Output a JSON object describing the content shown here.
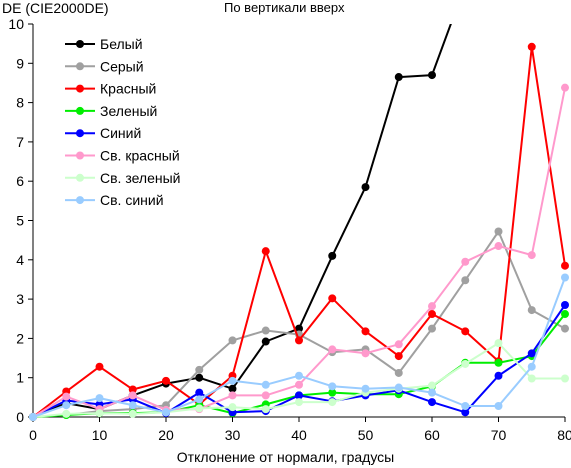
{
  "chart_data": {
    "type": "line",
    "title": "По вертикали вверх",
    "ylabel": "DE (CIE2000DE)",
    "xlabel": "Отклонение от нормали, градусы",
    "xlim": [
      0,
      80
    ],
    "ylim": [
      0,
      10
    ],
    "x_ticks": [
      "0",
      "10",
      "20",
      "30",
      "40",
      "50",
      "60",
      "70",
      "80"
    ],
    "y_ticks": [
      "0",
      "1",
      "2",
      "3",
      "4",
      "5",
      "6",
      "7",
      "8",
      "9",
      "10"
    ],
    "grid": false,
    "legend_position": "top-left",
    "x": [
      0,
      5,
      10,
      15,
      20,
      25,
      30,
      35,
      40,
      45,
      50,
      55,
      60,
      65,
      70,
      75,
      80
    ],
    "series": [
      {
        "name": "Белый",
        "color": "#000000",
        "values": [
          0.0,
          0.35,
          0.2,
          0.55,
          0.85,
          1.0,
          0.72,
          1.92,
          2.25,
          4.1,
          5.85,
          8.65,
          8.7,
          11.0,
          null,
          null,
          null
        ]
      },
      {
        "name": "Серый",
        "color": "#a0a0a0",
        "values": [
          0.0,
          0.05,
          0.15,
          0.2,
          0.3,
          1.2,
          1.95,
          2.2,
          2.1,
          1.65,
          1.72,
          1.12,
          2.25,
          3.48,
          4.72,
          2.72,
          2.25
        ]
      },
      {
        "name": "Красный",
        "color": "#ff0000",
        "values": [
          0.0,
          0.65,
          1.28,
          0.7,
          0.92,
          0.32,
          1.05,
          4.22,
          1.95,
          3.02,
          2.18,
          1.55,
          2.62,
          2.18,
          1.42,
          9.42,
          3.85
        ]
      },
      {
        "name": "Зеленый",
        "color": "#00ee00",
        "values": [
          0.0,
          0.05,
          0.1,
          0.1,
          0.12,
          0.3,
          0.1,
          0.32,
          0.55,
          0.62,
          0.58,
          0.58,
          0.78,
          1.38,
          1.38,
          1.55,
          2.62
        ]
      },
      {
        "name": "Синий",
        "color": "#0000ff",
        "values": [
          0.0,
          0.42,
          0.32,
          0.45,
          0.1,
          0.62,
          0.12,
          0.15,
          0.55,
          0.4,
          0.55,
          0.68,
          0.38,
          0.12,
          1.05,
          1.62,
          2.85
        ]
      },
      {
        "name": "Св. красный",
        "color": "#ff99cc",
        "values": [
          0.0,
          0.52,
          0.2,
          0.55,
          0.18,
          0.2,
          0.55,
          0.55,
          0.82,
          1.72,
          1.62,
          1.85,
          2.82,
          3.95,
          4.35,
          4.12,
          8.38
        ]
      },
      {
        "name": "Св. зеленый",
        "color": "#ccffcc",
        "values": [
          0.0,
          0.08,
          0.1,
          0.08,
          0.12,
          0.22,
          0.25,
          0.2,
          0.38,
          0.38,
          0.62,
          0.72,
          0.8,
          1.35,
          1.88,
          0.98,
          0.98
        ]
      },
      {
        "name": "Св. синий",
        "color": "#99ccff",
        "values": [
          0.0,
          0.3,
          0.48,
          0.3,
          0.12,
          0.45,
          0.92,
          0.82,
          1.05,
          0.78,
          0.72,
          0.75,
          0.62,
          0.28,
          0.28,
          1.28,
          3.55
        ]
      }
    ]
  }
}
